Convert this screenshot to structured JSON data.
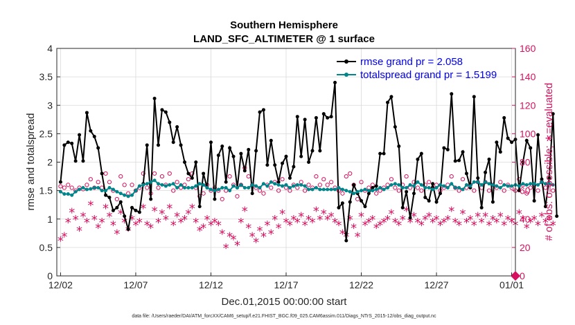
{
  "colors": {
    "rmse": "#000000",
    "spread": "#00858a",
    "obs": "#d6105f",
    "legend_text": "#0000ee"
  },
  "chart_data": {
    "type": "line",
    "title": "Southern Hemisphere",
    "subtitle": "LAND_SFC_ALTIMETER @ 1 surface",
    "xlabel": "Dec.01,2015 00:00:00 start",
    "ylabel": "rmse and totalspread",
    "ylabel_right": "# of obs: o=possible; ∗=evaluated",
    "x_ticks": [
      "12/02",
      "12/07",
      "12/12",
      "12/17",
      "12/22",
      "12/27",
      "01/01"
    ],
    "x_tick_days": [
      1,
      6,
      11,
      16,
      21,
      26,
      31
    ],
    "xlim": [
      0.75,
      31.25
    ],
    "ylim": [
      0,
      4
    ],
    "y_ticks": [
      "0",
      "0.5",
      "1",
      "1.5",
      "2",
      "2.5",
      "3",
      "3.5",
      "4"
    ],
    "ylim_right": [
      0,
      160
    ],
    "y_ticks_right": [
      "0",
      "20",
      "40",
      "60",
      "80",
      "100",
      "120",
      "140",
      "160"
    ],
    "grid": true,
    "legend_position": "top-right",
    "legend": [
      "rmse grand pr = 2.058",
      "totalspread grand pr = 1.5199"
    ],
    "x_step_days": 0.25,
    "series": [
      {
        "name": "rmse",
        "marker": "filled-circle",
        "values": [
          1.65,
          2.3,
          2.35,
          2.33,
          2.02,
          2.48,
          2.02,
          2.87,
          2.55,
          2.45,
          2.25,
          1.8,
          1.42,
          1.38,
          1.15,
          1.2,
          1.3,
          1.05,
          0.82,
          1.2,
          1.15,
          1.12,
          1.62,
          2.3,
          1.35,
          3.12,
          2.3,
          2.92,
          2.88,
          2.7,
          2.35,
          2.62,
          2.3,
          2.0,
          1.8,
          1.72,
          2.0,
          1.22,
          1.8,
          1.55,
          2.35,
          1.35,
          2.12,
          2.28,
          1.65,
          2.25,
          2.1,
          1.55,
          2.15,
          1.85,
          2.22,
          1.45,
          2.2,
          2.88,
          2.92,
          1.95,
          2.38,
          1.95,
          1.65,
          1.98,
          2.1,
          1.72,
          1.92,
          2.8,
          2.1,
          2.75,
          2.0,
          2.2,
          2.78,
          2.2,
          2.85,
          2.78,
          2.8,
          3.4,
          1.2,
          1.28,
          0.62,
          1.3,
          1.6,
          1.45,
          1.32,
          1.22,
          1.45,
          1.55,
          1.58,
          2.15,
          2.15,
          3.05,
          3.15,
          2.62,
          2.28,
          1.2,
          1.48,
          1.02,
          1.45,
          2.05,
          2.15,
          1.38,
          1.32,
          1.62,
          1.3,
          1.45,
          2.25,
          2.22,
          3.2,
          2.02,
          2.03,
          2.18,
          1.8,
          1.55,
          3.15,
          1.72,
          1.2,
          1.82,
          2.05,
          1.3,
          2.35,
          2.18,
          2.78,
          2.42,
          2.35,
          2.4,
          1.5,
          2.0,
          2.38,
          2.25,
          1.32,
          2.48,
          1.7,
          1.22,
          1.72,
          2.85,
          1.05
        ]
      },
      {
        "name": "totalspread",
        "marker": "filled-circle",
        "values": [
          1.48,
          1.44,
          1.44,
          1.42,
          1.48,
          1.52,
          1.55,
          1.52,
          1.53,
          1.55,
          1.55,
          1.5,
          1.5,
          1.55,
          1.52,
          1.48,
          1.45,
          1.42,
          1.4,
          1.42,
          1.5,
          1.58,
          1.6,
          1.62,
          1.65,
          1.68,
          1.62,
          1.6,
          1.58,
          1.6,
          1.62,
          1.55,
          1.6,
          1.55,
          1.55,
          1.55,
          1.58,
          1.62,
          1.6,
          1.55,
          1.52,
          1.5,
          1.52,
          1.55,
          1.55,
          1.5,
          1.58,
          1.55,
          1.6,
          1.55,
          1.55,
          1.6,
          1.58,
          1.55,
          1.62,
          1.58,
          1.65,
          1.62,
          1.6,
          1.58,
          1.6,
          1.55,
          1.58,
          1.6,
          1.6,
          1.58,
          1.52,
          1.52,
          1.55,
          1.52,
          1.52,
          1.52,
          1.52,
          1.52,
          1.55,
          1.52,
          1.5,
          1.48,
          1.45,
          1.48,
          1.5,
          1.52,
          1.5,
          1.5,
          1.52,
          1.55,
          1.52,
          1.55,
          1.6,
          1.62,
          1.6,
          1.55,
          1.55,
          1.6,
          1.58,
          1.65,
          1.6,
          1.55,
          1.55,
          1.52,
          1.55,
          1.6,
          1.58,
          1.55,
          1.62,
          1.55,
          1.55,
          1.52,
          1.6,
          1.58,
          1.65,
          1.65,
          1.6,
          1.65,
          1.62,
          1.6,
          1.58,
          1.55,
          1.6,
          1.58,
          1.58,
          1.6,
          1.58,
          1.62,
          1.6,
          1.62,
          1.62,
          1.6,
          1.65,
          1.62,
          1.62,
          1.6
        ]
      },
      {
        "name": "obs possible",
        "axis": "right",
        "marker": "open-circle",
        "values": [
          63,
          62,
          64,
          62,
          60,
          62,
          61,
          64,
          68,
          62,
          66,
          62,
          72,
          66,
          60,
          54,
          70,
          64,
          58,
          64,
          60,
          62,
          72,
          62,
          58,
          72,
          62,
          70,
          64,
          72,
          60,
          66,
          62,
          64,
          68,
          72,
          62,
          56,
          58,
          64,
          60,
          62,
          60,
          54,
          60,
          70,
          64,
          56,
          64,
          76,
          70,
          64,
          62,
          60,
          58,
          64,
          62,
          66,
          60,
          68,
          62,
          60,
          64,
          62,
          66,
          60,
          64,
          62,
          70,
          64,
          68,
          64,
          66,
          62,
          60,
          58,
          70,
          72,
          64,
          54,
          66,
          60,
          62,
          64,
          58,
          60,
          62,
          64,
          68,
          62,
          60,
          64,
          70,
          62,
          66,
          62,
          60,
          64,
          66,
          62,
          64,
          60,
          62,
          64,
          70,
          62,
          60,
          68,
          62,
          64,
          60,
          66,
          62,
          66,
          60,
          64,
          62,
          66,
          60,
          64,
          62,
          60,
          68,
          64,
          58,
          62,
          64,
          60,
          66,
          62,
          64,
          60
        ]
      },
      {
        "name": "obs evaluated",
        "axis": "right",
        "marker": "asterisk",
        "values": [
          25,
          28,
          38,
          45,
          40,
          32,
          42,
          38,
          50,
          40,
          34,
          38,
          48,
          42,
          36,
          30,
          44,
          38,
          32,
          40,
          36,
          38,
          48,
          36,
          34,
          46,
          38,
          44,
          40,
          48,
          36,
          42,
          38,
          40,
          44,
          48,
          38,
          32,
          34,
          40,
          36,
          38,
          36,
          30,
          20,
          28,
          26,
          22,
          38,
          46,
          34,
          28,
          24,
          32,
          28,
          36,
          30,
          40,
          34,
          44,
          38,
          36,
          40,
          38,
          42,
          36,
          40,
          38,
          46,
          40,
          44,
          40,
          42,
          38,
          36,
          30,
          28,
          40,
          34,
          28,
          42,
          36,
          38,
          40,
          34,
          36,
          38,
          40,
          44,
          38,
          36,
          40,
          46,
          38,
          42,
          38,
          36,
          40,
          42,
          38,
          40,
          36,
          38,
          40,
          46,
          38,
          36,
          44,
          38,
          40,
          36,
          42,
          38,
          42,
          36,
          40,
          38,
          42,
          36,
          40,
          38,
          36,
          44,
          40,
          34,
          38,
          40,
          36,
          42,
          38,
          40,
          36
        ]
      }
    ]
  },
  "footer": "data file: /Users/raeder/DAI/ATM_forcXX/CAM6_setup/f.e21.FHIST_BGC.f09_025.CAM6assim.011/Diags_NTrS_2015-12/obs_diag_output.nc"
}
